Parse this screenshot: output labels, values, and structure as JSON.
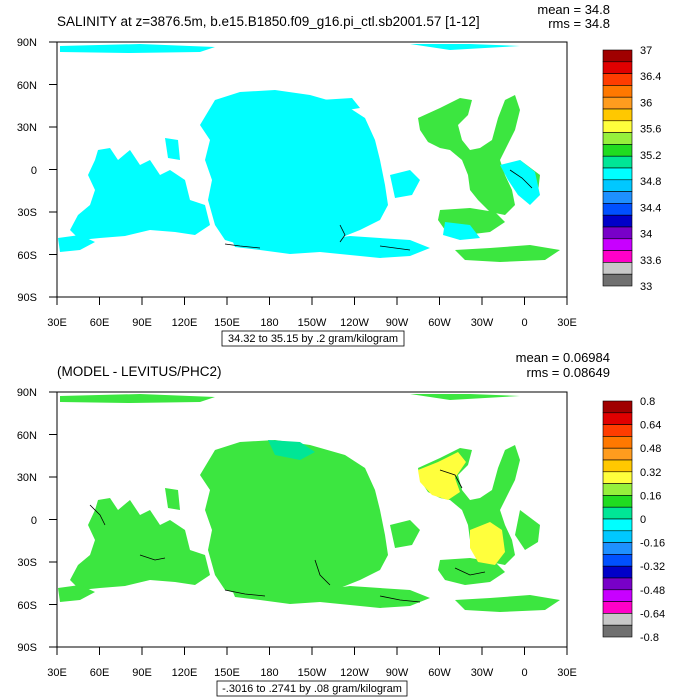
{
  "panels": [
    {
      "title": "SALINITY at z=3876.5m, b.e15.B1850.f09_g16.pi_ctl.sb2001.57 [1-12]",
      "mean_label": "mean = 34.8",
      "rms_label": "rms = 34.8",
      "contour_info": "34.32 to 35.15 by .2 gram/kilogram",
      "field_color": "#00ffff",
      "colorbar": {
        "labels": [
          "37",
          "36.4",
          "36",
          "35.6",
          "35.2",
          "34.8",
          "34.4",
          "34",
          "33.6",
          "33"
        ],
        "colors": [
          "#a00000",
          "#e00000",
          "#ff3c00",
          "#ff7800",
          "#ff9c1e",
          "#ffc800",
          "#ffff3c",
          "#96f03c",
          "#20dc20",
          "#00e696",
          "#00ffff",
          "#00c8ff",
          "#1e90ff",
          "#0050ff",
          "#0000c8",
          "#7800c8",
          "#c800ff",
          "#ff00c8",
          "#c8c8c8",
          "#707070"
        ]
      }
    },
    {
      "title": "(MODEL - LEVITUS/PHC2)",
      "mean_label": "mean = 0.06984",
      "rms_label": "rms = 0.08649",
      "contour_info": "-.3016 to .2741 by .08 gram/kilogram",
      "field_color": "#3ce640",
      "colorbar": {
        "labels": [
          "0.8",
          "0.64",
          "0.48",
          "0.32",
          "0.16",
          "0",
          "-0.16",
          "-0.32",
          "-0.48",
          "-0.64",
          "-0.8"
        ],
        "colors": [
          "#a00000",
          "#e00000",
          "#ff3c00",
          "#ff7800",
          "#ff9c1e",
          "#ffc800",
          "#ffff3c",
          "#96f03c",
          "#20dc20",
          "#00e696",
          "#00ffff",
          "#00c8ff",
          "#1e90ff",
          "#0050ff",
          "#0000c8",
          "#7800c8",
          "#c800ff",
          "#ff00c8",
          "#c8c8c8",
          "#707070"
        ]
      }
    }
  ],
  "lat_labels": [
    "90N",
    "60N",
    "30N",
    "0",
    "30S",
    "60S",
    "90S"
  ],
  "lon_labels": [
    "30E",
    "60E",
    "90E",
    "120E",
    "150E",
    "180",
    "150W",
    "120W",
    "90W",
    "60W",
    "30W",
    "0",
    "30E"
  ]
}
